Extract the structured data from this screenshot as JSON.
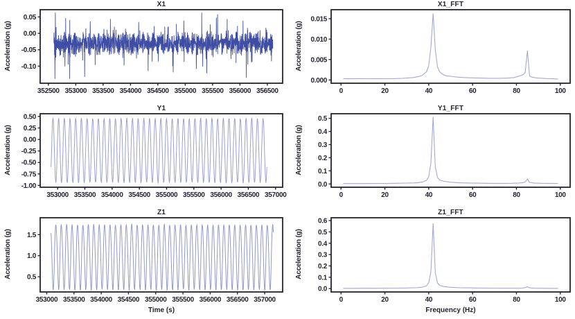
{
  "figure": {
    "background": "#ffffff",
    "axis_color": "#232330",
    "text_color": "#232330"
  },
  "chart_data": [
    {
      "id": "X1",
      "type": "line",
      "title": "X1",
      "xlabel": "",
      "ylabel": "Acceleration (g)",
      "xlim": [
        352350,
        356780
      ],
      "ylim": [
        -0.152,
        0.072
      ],
      "xtick_values": [
        352500,
        353000,
        353500,
        354000,
        354500,
        355000,
        355500,
        356000,
        356500
      ],
      "xtick_labels": [
        "352500",
        "353000",
        "353500",
        "354000",
        "354500",
        "355000",
        "355500",
        "356000",
        "356500"
      ],
      "ytick_values": [
        0.05,
        0.0,
        -0.05,
        -0.1
      ],
      "ytick_labels": [
        "0.05",
        "0.00",
        "-0.05",
        "-0.10"
      ],
      "grid": false,
      "legend": "none",
      "line_color": "#3f4da4",
      "line_width": 0.9,
      "series": {
        "kind": "noise",
        "seed": 11,
        "n": 1650,
        "t_start": 352600,
        "t_end": 356600,
        "base": -0.031,
        "spread": 0.052,
        "spike_prob": 0.12,
        "spike_scale": 0.135,
        "mod_period": 37,
        "mod_depth": 0.45,
        "clip_min": -0.139,
        "clip_max": 0.063,
        "signal_min": -0.139,
        "signal_max": 0.063,
        "signal_mean": -0.03
      }
    },
    {
      "id": "X1_FFT",
      "type": "line",
      "title": "X1_FFT",
      "xlabel": "",
      "ylabel": "Acceleration (g)",
      "xlim": [
        -4.5,
        104.5
      ],
      "ylim": [
        -0.0008,
        0.0172
      ],
      "xtick_values": [
        0,
        20,
        40,
        60,
        80,
        100
      ],
      "xtick_labels": [
        "0",
        "20",
        "40",
        "60",
        "80",
        "100"
      ],
      "ytick_values": [
        0.0,
        0.005,
        0.01,
        0.015
      ],
      "ytick_labels": [
        "0.000",
        "0.005",
        "0.010",
        "0.015"
      ],
      "grid": false,
      "legend": "none",
      "line_color": "#a3a8d4",
      "line_width": 1.1,
      "main_peak": {
        "x": 42,
        "y": 0.0163
      },
      "secondary_peak": {
        "x": 85,
        "y": 0.0072
      },
      "series": {
        "kind": "points",
        "points": [
          [
            1,
            0.0003
          ],
          [
            4,
            0.00028
          ],
          [
            8,
            0.00032
          ],
          [
            12,
            0.0003
          ],
          [
            16,
            0.00028
          ],
          [
            20,
            0.0003
          ],
          [
            24,
            0.00032
          ],
          [
            28,
            0.0004
          ],
          [
            31,
            0.0005
          ],
          [
            33,
            0.0006
          ],
          [
            35,
            0.0008
          ],
          [
            37,
            0.0011
          ],
          [
            39,
            0.002
          ],
          [
            40,
            0.0035
          ],
          [
            41,
            0.008
          ],
          [
            42,
            0.0163
          ],
          [
            43,
            0.0075
          ],
          [
            44,
            0.0032
          ],
          [
            45,
            0.002
          ],
          [
            46,
            0.0015
          ],
          [
            48,
            0.001
          ],
          [
            50,
            0.0009
          ],
          [
            53,
            0.0007
          ],
          [
            56,
            0.0006
          ],
          [
            60,
            0.0005
          ],
          [
            64,
            0.00045
          ],
          [
            68,
            0.0004
          ],
          [
            72,
            0.0004
          ],
          [
            76,
            0.00045
          ],
          [
            79,
            0.0006
          ],
          [
            81,
            0.0009
          ],
          [
            83,
            0.0013
          ],
          [
            84,
            0.0018
          ],
          [
            85,
            0.0072
          ],
          [
            86,
            0.001
          ],
          [
            87,
            0.0007
          ],
          [
            89,
            0.0005
          ],
          [
            92,
            0.0004
          ],
          [
            95,
            0.0003
          ],
          [
            97,
            0.00028
          ],
          [
            99,
            0.0002
          ]
        ]
      }
    },
    {
      "id": "Y1",
      "type": "line",
      "title": "Y1",
      "xlabel": "",
      "ylabel": "Acceleration (g)",
      "xlim": [
        352680,
        357130
      ],
      "ylim": [
        -1.04,
        0.56
      ],
      "xtick_values": [
        353000,
        353500,
        354000,
        354500,
        355000,
        355500,
        356000,
        356500,
        357000
      ],
      "xtick_labels": [
        "353000",
        "353500",
        "354000",
        "354500",
        "355000",
        "355500",
        "356000",
        "356500",
        "357000"
      ],
      "ytick_values": [
        0.5,
        0.25,
        0.0,
        -0.25,
        -0.5,
        -0.75,
        -1.0
      ],
      "ytick_labels": [
        "0.50",
        "0.25",
        "0.00",
        "-0.25",
        "-0.50",
        "-0.75",
        "-1.00"
      ],
      "grid": false,
      "legend": "none",
      "line_color": "#9b9fd4",
      "line_width": 1.0,
      "series": {
        "kind": "sine",
        "seed": 5,
        "t_start": 352880,
        "t_end": 356840,
        "cycles": 38,
        "points_per_cycle": 26,
        "offset": -0.24,
        "amplitude": 0.697,
        "amp_jitter": 0.02,
        "harmonic2": 0.0,
        "phase": -0.54,
        "signal_min": -0.935,
        "signal_max": 0.455
      }
    },
    {
      "id": "Y1_FFT",
      "type": "line",
      "title": "Y1_FFT",
      "xlabel": "",
      "ylabel": "Acceleration (g)",
      "xlim": [
        -4.5,
        104.5
      ],
      "ylim": [
        -0.025,
        0.535
      ],
      "xtick_values": [
        0,
        20,
        40,
        60,
        80,
        100
      ],
      "xtick_labels": [
        "0",
        "20",
        "40",
        "60",
        "80",
        "100"
      ],
      "ytick_values": [
        0.0,
        0.1,
        0.2,
        0.3,
        0.4,
        0.5
      ],
      "ytick_labels": [
        "0.0",
        "0.1",
        "0.2",
        "0.3",
        "0.4",
        "0.5"
      ],
      "grid": false,
      "legend": "none",
      "line_color": "#a3a8d4",
      "line_width": 1.1,
      "main_peak": {
        "x": 42,
        "y": 0.51
      },
      "secondary_peak": {
        "x": 85,
        "y": 0.038
      },
      "series": {
        "kind": "points",
        "points": [
          [
            1,
            0.003
          ],
          [
            5,
            0.003
          ],
          [
            10,
            0.0032
          ],
          [
            15,
            0.0035
          ],
          [
            20,
            0.004
          ],
          [
            25,
            0.005
          ],
          [
            30,
            0.0065
          ],
          [
            33,
            0.008
          ],
          [
            35,
            0.01
          ],
          [
            37,
            0.014
          ],
          [
            39,
            0.028
          ],
          [
            40,
            0.055
          ],
          [
            41,
            0.16
          ],
          [
            42,
            0.51
          ],
          [
            43,
            0.13
          ],
          [
            44,
            0.05
          ],
          [
            45,
            0.03
          ],
          [
            47,
            0.02
          ],
          [
            50,
            0.013
          ],
          [
            54,
            0.009
          ],
          [
            58,
            0.007
          ],
          [
            62,
            0.006
          ],
          [
            66,
            0.005
          ],
          [
            70,
            0.0045
          ],
          [
            74,
            0.0045
          ],
          [
            78,
            0.005
          ],
          [
            81,
            0.007
          ],
          [
            83,
            0.01
          ],
          [
            84,
            0.015
          ],
          [
            85,
            0.038
          ],
          [
            86,
            0.012
          ],
          [
            88,
            0.007
          ],
          [
            91,
            0.005
          ],
          [
            95,
            0.0045
          ],
          [
            99,
            0.004
          ]
        ]
      }
    },
    {
      "id": "Z1",
      "type": "line",
      "title": "Z1",
      "xlabel": "Time (s)",
      "ylabel": "Acceleration (g)",
      "xlim": [
        352880,
        357330
      ],
      "ylim": [
        0.14,
        1.9
      ],
      "xtick_values": [
        353000,
        353500,
        354000,
        354500,
        355000,
        355500,
        356000,
        356500,
        357000
      ],
      "xtick_labels": [
        "353000",
        "353500",
        "354000",
        "354500",
        "355000",
        "355500",
        "356000",
        "356500",
        "357000"
      ],
      "ytick_values": [
        0.5,
        1.0,
        1.5
      ],
      "ytick_labels": [
        "0.5",
        "1.0",
        "1.5"
      ],
      "grid": false,
      "legend": "none",
      "line_color": "#9298ca",
      "line_width": 1.0,
      "series": {
        "kind": "sine",
        "seed": 9,
        "t_start": 353080,
        "t_end": 357160,
        "cycles": 41,
        "points_per_cycle": 26,
        "offset": 1.0,
        "amplitude": 0.765,
        "amp_jitter": 0.025,
        "harmonic2": 0.055,
        "phase": 2.26,
        "signal_min": 0.25,
        "signal_max": 1.78
      }
    },
    {
      "id": "Z1_FFT",
      "type": "line",
      "title": "Z1_FFT",
      "xlabel": "Frequency (Hz)",
      "ylabel": "Acceleration (g)",
      "xlim": [
        -4.5,
        104.5
      ],
      "ylim": [
        -0.03,
        0.625
      ],
      "xtick_values": [
        0,
        20,
        40,
        60,
        80,
        100
      ],
      "xtick_labels": [
        "0",
        "20",
        "40",
        "60",
        "80",
        "100"
      ],
      "ytick_values": [
        0.0,
        0.1,
        0.2,
        0.3,
        0.4,
        0.5,
        0.6
      ],
      "ytick_labels": [
        "0.0",
        "0.1",
        "0.2",
        "0.3",
        "0.4",
        "0.5",
        "0.6"
      ],
      "grid": false,
      "legend": "none",
      "line_color": "#a3a8d4",
      "line_width": 1.1,
      "main_peak": {
        "x": 42,
        "y": 0.575
      },
      "secondary_peak": {
        "x": 85,
        "y": 0.016
      },
      "series": {
        "kind": "points",
        "points": [
          [
            1,
            0.002
          ],
          [
            5,
            0.002
          ],
          [
            10,
            0.0022
          ],
          [
            15,
            0.0025
          ],
          [
            20,
            0.003
          ],
          [
            25,
            0.0038
          ],
          [
            30,
            0.005
          ],
          [
            33,
            0.0065
          ],
          [
            35,
            0.008
          ],
          [
            37,
            0.012
          ],
          [
            39,
            0.024
          ],
          [
            40,
            0.05
          ],
          [
            41,
            0.15
          ],
          [
            42,
            0.575
          ],
          [
            43,
            0.14
          ],
          [
            44,
            0.05
          ],
          [
            45,
            0.028
          ],
          [
            47,
            0.017
          ],
          [
            50,
            0.011
          ],
          [
            54,
            0.0075
          ],
          [
            58,
            0.006
          ],
          [
            62,
            0.005
          ],
          [
            66,
            0.004
          ],
          [
            70,
            0.0035
          ],
          [
            74,
            0.003
          ],
          [
            78,
            0.003
          ],
          [
            81,
            0.0035
          ],
          [
            83,
            0.005
          ],
          [
            84,
            0.008
          ],
          [
            85,
            0.016
          ],
          [
            86,
            0.006
          ],
          [
            88,
            0.003
          ],
          [
            92,
            0.0025
          ],
          [
            96,
            0.002
          ],
          [
            99,
            0.002
          ]
        ]
      }
    }
  ]
}
